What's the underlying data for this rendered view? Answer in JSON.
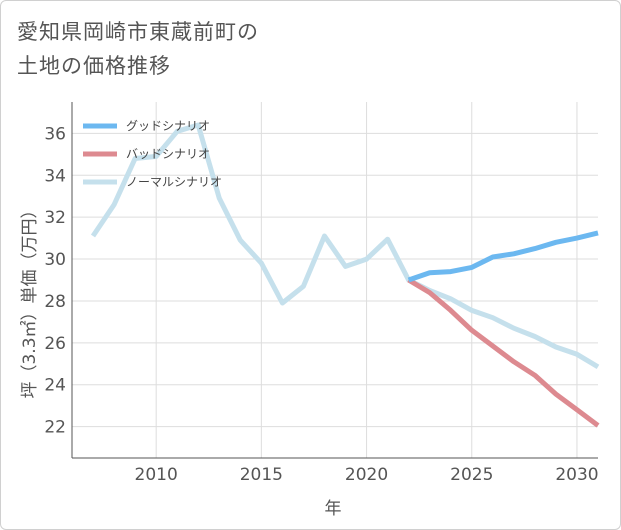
{
  "chart_data": {
    "type": "line",
    "title": "愛知県岡崎市東蔵前町の土地の価格推移",
    "title_lines": [
      "愛知県岡崎市東蔵前町の",
      "土地の価格推移"
    ],
    "xlabel": "年",
    "ylabel": "坪（3.3㎡）単価（万円）",
    "xlim": [
      2006,
      2031
    ],
    "ylim": [
      20.5,
      37.5
    ],
    "x_ticks": [
      2010,
      2015,
      2020,
      2025,
      2030
    ],
    "y_ticks": [
      22,
      24,
      26,
      28,
      30,
      32,
      34,
      36
    ],
    "grid": true,
    "legend_position": "top-left",
    "series": [
      {
        "name": "グッドシナリオ",
        "color": "#6cb8f0",
        "x": [
          2022,
          2023,
          2024,
          2025,
          2026,
          2027,
          2028,
          2029,
          2030,
          2031
        ],
        "values": [
          29.0,
          29.35,
          29.4,
          29.6,
          30.1,
          30.25,
          30.5,
          30.8,
          31.0,
          31.25
        ]
      },
      {
        "name": "バッドシナリオ",
        "color": "#dd8a90",
        "x": [
          2022,
          2023,
          2024,
          2025,
          2026,
          2027,
          2028,
          2029,
          2030,
          2031
        ],
        "values": [
          29.0,
          28.4,
          27.55,
          26.6,
          25.85,
          25.1,
          24.45,
          23.55,
          22.8,
          22.05
        ]
      },
      {
        "name": "ノーマルシナリオ",
        "color": "#c5e0ec",
        "x": [
          2007,
          2008,
          2009,
          2010,
          2011,
          2012,
          2013,
          2014,
          2015,
          2016,
          2017,
          2018,
          2019,
          2020,
          2021,
          2022,
          2023,
          2024,
          2025,
          2026,
          2027,
          2028,
          2029,
          2030,
          2031
        ],
        "values": [
          31.1,
          32.6,
          34.8,
          34.9,
          36.1,
          36.4,
          32.9,
          30.9,
          29.8,
          27.9,
          28.7,
          31.1,
          29.65,
          30.0,
          30.95,
          29.0,
          28.5,
          28.1,
          27.55,
          27.2,
          26.7,
          26.3,
          25.8,
          25.45,
          24.85
        ]
      }
    ]
  }
}
